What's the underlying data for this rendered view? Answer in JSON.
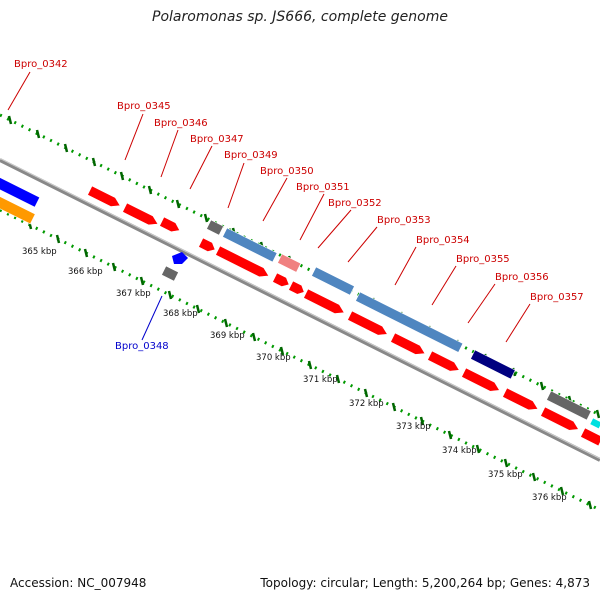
{
  "title": "Polaromonas sp. JS666, complete genome",
  "footer": {
    "accession": "Accession: NC_007948",
    "topology": "Topology: circular; Length: 5,200,264 bp; Genes: 4,873"
  },
  "colors": {
    "background": "#ffffff",
    "backbone": "#888888",
    "gene_red": "#ff0000",
    "gene_blue": "#0000ff",
    "gene_orange": "#ff9900",
    "gene_steelblue": "#4f86c0",
    "gene_navy": "#000080",
    "gene_gray": "#666666",
    "gene_pink": "#f08080",
    "gene_cyan": "#00e0e0",
    "label_red": "#cc0000",
    "label_blue": "#0000cc",
    "ruler_dot": "#009900",
    "ruler_tick": "#006600"
  },
  "kbp_labels": [
    "365 kbp",
    "366 kbp",
    "367 kbp",
    "368 kbp",
    "369 kbp",
    "370 kbp",
    "371 kbp",
    "372 kbp",
    "373 kbp",
    "374 kbp",
    "375 kbp",
    "376 kbp"
  ],
  "gene_labels": [
    {
      "text": "Bpro_0342",
      "color": "red"
    },
    {
      "text": "Bpro_0345",
      "color": "red"
    },
    {
      "text": "Bpro_0346",
      "color": "red"
    },
    {
      "text": "Bpro_0347",
      "color": "red"
    },
    {
      "text": "Bpro_0349",
      "color": "red"
    },
    {
      "text": "Bpro_0350",
      "color": "red"
    },
    {
      "text": "Bpro_0351",
      "color": "red"
    },
    {
      "text": "Bpro_0352",
      "color": "red"
    },
    {
      "text": "Bpro_0353",
      "color": "red"
    },
    {
      "text": "Bpro_0354",
      "color": "red"
    },
    {
      "text": "Bpro_0355",
      "color": "red"
    },
    {
      "text": "Bpro_0356",
      "color": "red"
    },
    {
      "text": "Bpro_0357",
      "color": "red"
    },
    {
      "text": "Bpro_0348",
      "color": "blue"
    }
  ]
}
